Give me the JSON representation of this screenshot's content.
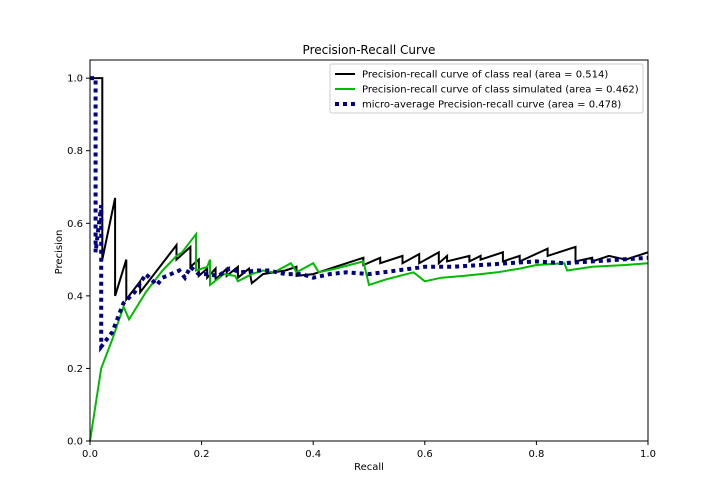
{
  "chart_data": {
    "type": "line",
    "title": "Precision-Recall Curve",
    "xlabel": "Recall",
    "ylabel": "Precision",
    "xlim": [
      0.0,
      1.0
    ],
    "ylim": [
      0.0,
      1.05
    ],
    "xticks": [
      "0.0",
      "0.2",
      "0.4",
      "0.6",
      "0.8",
      "1.0"
    ],
    "yticks": [
      "0.0",
      "0.2",
      "0.4",
      "0.6",
      "0.8",
      "1.0"
    ],
    "grid": false,
    "legend_position": "top-right",
    "series": [
      {
        "name": "Precision-recall curve of class real (area = 0.514)",
        "color": "#000000",
        "style": "solid",
        "points": [
          [
            0.0,
            1.0
          ],
          [
            0.022,
            1.0
          ],
          [
            0.022,
            0.5
          ],
          [
            0.045,
            0.67
          ],
          [
            0.045,
            0.4
          ],
          [
            0.065,
            0.5
          ],
          [
            0.065,
            0.39
          ],
          [
            0.09,
            0.44
          ],
          [
            0.09,
            0.41
          ],
          [
            0.155,
            0.54
          ],
          [
            0.155,
            0.5
          ],
          [
            0.18,
            0.535
          ],
          [
            0.18,
            0.48
          ],
          [
            0.195,
            0.5
          ],
          [
            0.195,
            0.455
          ],
          [
            0.21,
            0.475
          ],
          [
            0.21,
            0.45
          ],
          [
            0.225,
            0.475
          ],
          [
            0.225,
            0.445
          ],
          [
            0.245,
            0.475
          ],
          [
            0.245,
            0.455
          ],
          [
            0.265,
            0.48
          ],
          [
            0.265,
            0.45
          ],
          [
            0.285,
            0.475
          ],
          [
            0.29,
            0.435
          ],
          [
            0.31,
            0.46
          ],
          [
            0.33,
            0.465
          ],
          [
            0.35,
            0.47
          ],
          [
            0.37,
            0.48
          ],
          [
            0.37,
            0.455
          ],
          [
            0.4,
            0.46
          ],
          [
            0.44,
            0.48
          ],
          [
            0.48,
            0.5
          ],
          [
            0.49,
            0.505
          ],
          [
            0.49,
            0.485
          ],
          [
            0.52,
            0.505
          ],
          [
            0.52,
            0.49
          ],
          [
            0.56,
            0.51
          ],
          [
            0.56,
            0.49
          ],
          [
            0.59,
            0.515
          ],
          [
            0.59,
            0.49
          ],
          [
            0.625,
            0.52
          ],
          [
            0.625,
            0.49
          ],
          [
            0.64,
            0.51
          ],
          [
            0.64,
            0.495
          ],
          [
            0.68,
            0.51
          ],
          [
            0.68,
            0.495
          ],
          [
            0.7,
            0.51
          ],
          [
            0.7,
            0.5
          ],
          [
            0.74,
            0.52
          ],
          [
            0.74,
            0.495
          ],
          [
            0.77,
            0.51
          ],
          [
            0.77,
            0.495
          ],
          [
            0.82,
            0.53
          ],
          [
            0.82,
            0.51
          ],
          [
            0.87,
            0.535
          ],
          [
            0.87,
            0.495
          ],
          [
            0.9,
            0.505
          ],
          [
            0.9,
            0.495
          ],
          [
            0.93,
            0.51
          ],
          [
            0.96,
            0.5
          ],
          [
            1.0,
            0.52
          ]
        ]
      },
      {
        "name": "Precision-recall curve of class simulated (area = 0.462)",
        "color": "#00bb00",
        "style": "solid",
        "points": [
          [
            0.0,
            0.0
          ],
          [
            0.02,
            0.2
          ],
          [
            0.04,
            0.28
          ],
          [
            0.06,
            0.37
          ],
          [
            0.07,
            0.335
          ],
          [
            0.1,
            0.41
          ],
          [
            0.13,
            0.47
          ],
          [
            0.155,
            0.51
          ],
          [
            0.165,
            0.52
          ],
          [
            0.19,
            0.57
          ],
          [
            0.19,
            0.47
          ],
          [
            0.21,
            0.48
          ],
          [
            0.215,
            0.5
          ],
          [
            0.215,
            0.43
          ],
          [
            0.24,
            0.46
          ],
          [
            0.26,
            0.455
          ],
          [
            0.265,
            0.44
          ],
          [
            0.29,
            0.46
          ],
          [
            0.31,
            0.47
          ],
          [
            0.33,
            0.465
          ],
          [
            0.36,
            0.49
          ],
          [
            0.37,
            0.465
          ],
          [
            0.4,
            0.49
          ],
          [
            0.41,
            0.465
          ],
          [
            0.44,
            0.475
          ],
          [
            0.49,
            0.495
          ],
          [
            0.5,
            0.43
          ],
          [
            0.53,
            0.445
          ],
          [
            0.58,
            0.465
          ],
          [
            0.6,
            0.44
          ],
          [
            0.63,
            0.45
          ],
          [
            0.67,
            0.455
          ],
          [
            0.7,
            0.46
          ],
          [
            0.73,
            0.465
          ],
          [
            0.77,
            0.475
          ],
          [
            0.8,
            0.485
          ],
          [
            0.85,
            0.49
          ],
          [
            0.855,
            0.47
          ],
          [
            0.9,
            0.48
          ],
          [
            0.96,
            0.485
          ],
          [
            1.0,
            0.49
          ]
        ]
      },
      {
        "name": "micro-average Precision-recall curve (area = 0.478)",
        "color": "#000080",
        "style": "dotted",
        "points": [
          [
            0.0,
            1.0
          ],
          [
            0.01,
            1.0
          ],
          [
            0.01,
            0.52
          ],
          [
            0.02,
            0.65
          ],
          [
            0.02,
            0.26
          ],
          [
            0.04,
            0.3
          ],
          [
            0.06,
            0.38
          ],
          [
            0.08,
            0.41
          ],
          [
            0.1,
            0.46
          ],
          [
            0.12,
            0.43
          ],
          [
            0.13,
            0.45
          ],
          [
            0.16,
            0.47
          ],
          [
            0.17,
            0.45
          ],
          [
            0.18,
            0.48
          ],
          [
            0.195,
            0.46
          ],
          [
            0.21,
            0.46
          ],
          [
            0.23,
            0.455
          ],
          [
            0.25,
            0.475
          ],
          [
            0.27,
            0.465
          ],
          [
            0.3,
            0.47
          ],
          [
            0.32,
            0.47
          ],
          [
            0.35,
            0.46
          ],
          [
            0.38,
            0.46
          ],
          [
            0.4,
            0.45
          ],
          [
            0.43,
            0.46
          ],
          [
            0.46,
            0.465
          ],
          [
            0.5,
            0.46
          ],
          [
            0.55,
            0.47
          ],
          [
            0.6,
            0.48
          ],
          [
            0.65,
            0.48
          ],
          [
            0.7,
            0.485
          ],
          [
            0.75,
            0.49
          ],
          [
            0.8,
            0.495
          ],
          [
            0.85,
            0.49
          ],
          [
            0.9,
            0.495
          ],
          [
            0.95,
            0.5
          ],
          [
            1.0,
            0.505
          ]
        ]
      }
    ]
  }
}
